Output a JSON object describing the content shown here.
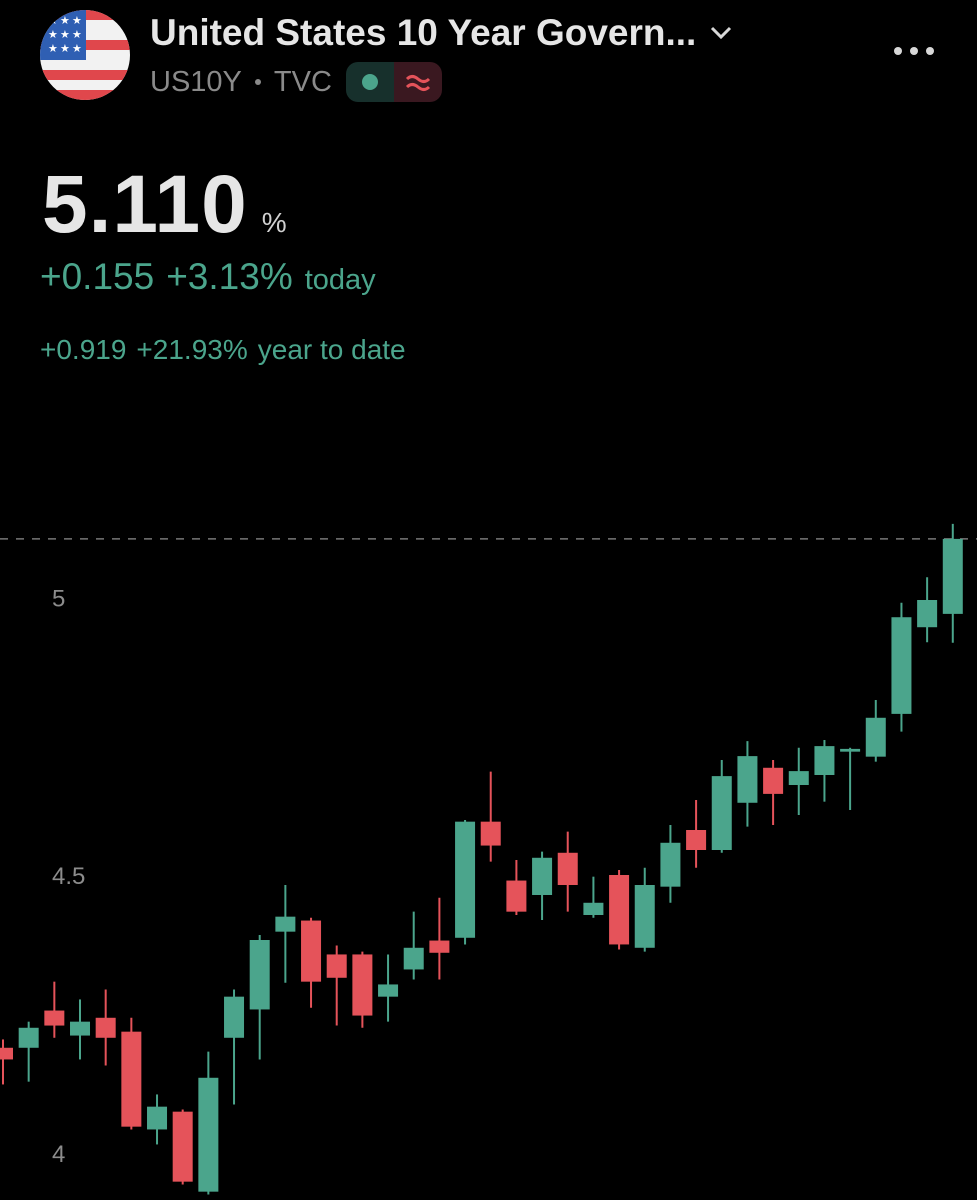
{
  "header": {
    "title": "United States 10 Year Govern...",
    "symbol": "US10Y",
    "exchange": "TVC"
  },
  "quote": {
    "price": "5.110",
    "unit": "%",
    "change_today": "+0.155",
    "change_today_pct": "+3.13%",
    "today_label": "today",
    "change_ytd": "+0.919",
    "change_ytd_pct": "+21.93%",
    "ytd_label": "year to date"
  },
  "chart_data": {
    "type": "candlestick",
    "open": [
      4.194,
      4.194,
      4.261,
      4.216,
      4.248,
      4.223,
      4.047,
      4.079,
      3.935,
      4.212,
      4.263,
      4.403,
      4.423,
      4.362,
      4.362,
      4.286,
      4.335,
      4.387,
      4.392,
      4.601,
      4.495,
      4.469,
      4.545,
      4.433,
      4.505,
      4.374,
      4.484,
      4.586,
      4.55,
      4.635,
      4.698,
      4.667,
      4.685,
      4.727,
      4.718,
      4.795,
      4.951,
      4.975
    ],
    "high": [
      4.209,
      4.241,
      4.313,
      4.281,
      4.299,
      4.248,
      4.11,
      4.083,
      4.187,
      4.299,
      4.397,
      4.487,
      4.428,
      4.378,
      4.367,
      4.362,
      4.439,
      4.464,
      4.604,
      4.691,
      4.532,
      4.547,
      4.583,
      4.502,
      4.514,
      4.518,
      4.595,
      4.64,
      4.712,
      4.746,
      4.712,
      4.734,
      4.748,
      4.734,
      4.82,
      4.995,
      5.041,
      5.137
    ],
    "low": [
      4.128,
      4.133,
      4.212,
      4.173,
      4.162,
      4.047,
      4.02,
      3.948,
      3.93,
      4.092,
      4.173,
      4.311,
      4.266,
      4.234,
      4.23,
      4.241,
      4.317,
      4.317,
      4.38,
      4.529,
      4.433,
      4.424,
      4.439,
      4.428,
      4.371,
      4.367,
      4.455,
      4.518,
      4.545,
      4.592,
      4.595,
      4.613,
      4.637,
      4.622,
      4.709,
      4.763,
      4.924,
      4.923
    ],
    "close": [
      4.173,
      4.23,
      4.234,
      4.241,
      4.212,
      4.052,
      4.088,
      3.953,
      4.14,
      4.286,
      4.388,
      4.43,
      4.313,
      4.32,
      4.252,
      4.308,
      4.374,
      4.365,
      4.601,
      4.558,
      4.439,
      4.536,
      4.487,
      4.455,
      4.38,
      4.487,
      4.563,
      4.55,
      4.683,
      4.719,
      4.651,
      4.692,
      4.737,
      4.732,
      4.788,
      4.969,
      5.0,
      5.11
    ],
    "ylim": [
      3.92,
      5.144
    ],
    "yticks": [
      4,
      4.5,
      5
    ],
    "up_color": "#4ba58c",
    "down_color": "#e5535a"
  }
}
